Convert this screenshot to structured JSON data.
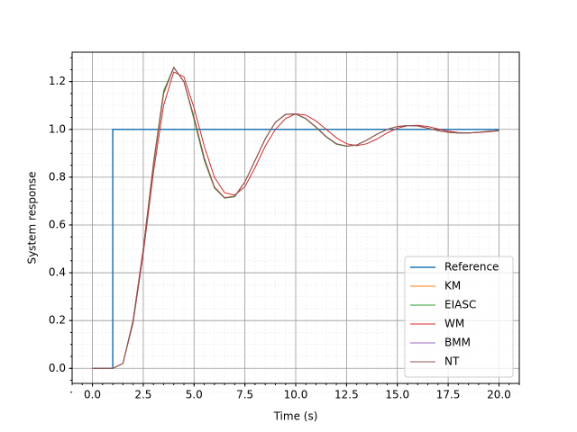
{
  "chart_data": {
    "type": "line",
    "x_label": "Time (s)",
    "y_label": "System response",
    "x": [
      0,
      0.5,
      1,
      1.5,
      2,
      2.5,
      3,
      3.5,
      4,
      4.5,
      5,
      5.5,
      6,
      6.5,
      7,
      7.5,
      8,
      8.5,
      9,
      9.5,
      10,
      10.5,
      11,
      11.5,
      12,
      12.5,
      13,
      13.5,
      14,
      14.5,
      15,
      15.5,
      16,
      16.5,
      17,
      17.5,
      18,
      18.5,
      19,
      19.5,
      20
    ],
    "series": [
      {
        "name": "Reference",
        "color": "#1f77b4",
        "x": [
          0,
          1,
          1,
          20
        ],
        "values": [
          0,
          0,
          1,
          1
        ]
      },
      {
        "name": "KM",
        "color": "#ff7f0e",
        "values": [
          0,
          0,
          0,
          0.02,
          0.2,
          0.5,
          0.85,
          1.15,
          1.26,
          1.2,
          1.05,
          0.88,
          0.76,
          0.715,
          0.72,
          0.78,
          0.87,
          0.96,
          1.03,
          1.063,
          1.065,
          1.045,
          1.01,
          0.97,
          0.94,
          0.93,
          0.935,
          0.955,
          0.98,
          1.0,
          1.012,
          1.016,
          1.014,
          1.005,
          0.995,
          0.988,
          0.985,
          0.985,
          0.988,
          0.992,
          0.995
        ]
      },
      {
        "name": "EIASC",
        "color": "#2ca02c",
        "values": [
          0,
          0,
          0,
          0.02,
          0.2,
          0.5,
          0.86,
          1.16,
          1.26,
          1.2,
          1.04,
          0.87,
          0.755,
          0.712,
          0.718,
          0.78,
          0.87,
          0.96,
          1.03,
          1.062,
          1.064,
          1.044,
          1.008,
          0.968,
          0.938,
          0.929,
          0.934,
          0.955,
          0.98,
          1.0,
          1.012,
          1.016,
          1.014,
          1.005,
          0.995,
          0.988,
          0.985,
          0.985,
          0.988,
          0.992,
          0.995
        ]
      },
      {
        "name": "WM",
        "color": "#d62728",
        "values": [
          0,
          0,
          0,
          0.02,
          0.19,
          0.48,
          0.82,
          1.1,
          1.24,
          1.22,
          1.09,
          0.93,
          0.8,
          0.735,
          0.725,
          0.76,
          0.84,
          0.93,
          1.0,
          1.045,
          1.065,
          1.06,
          1.035,
          1.0,
          0.965,
          0.94,
          0.932,
          0.94,
          0.96,
          0.985,
          1.005,
          1.015,
          1.017,
          1.012,
          1.002,
          0.993,
          0.987,
          0.985,
          0.987,
          0.99,
          0.994
        ]
      },
      {
        "name": "BMM",
        "color": "#9467bd",
        "values": [
          0,
          0,
          0,
          0.02,
          0.2,
          0.5,
          0.85,
          1.15,
          1.258,
          1.2,
          1.05,
          0.88,
          0.758,
          0.714,
          0.72,
          0.78,
          0.87,
          0.96,
          1.03,
          1.062,
          1.065,
          1.045,
          1.01,
          0.97,
          0.94,
          0.93,
          0.935,
          0.955,
          0.98,
          1.0,
          1.012,
          1.016,
          1.014,
          1.005,
          0.995,
          0.988,
          0.985,
          0.985,
          0.988,
          0.992,
          0.995
        ]
      },
      {
        "name": "NT",
        "color": "#8c564b",
        "values": [
          0,
          0,
          0,
          0.02,
          0.2,
          0.5,
          0.85,
          1.15,
          1.259,
          1.2,
          1.05,
          0.88,
          0.757,
          0.713,
          0.72,
          0.78,
          0.87,
          0.96,
          1.03,
          1.063,
          1.065,
          1.045,
          1.01,
          0.97,
          0.94,
          0.93,
          0.935,
          0.955,
          0.98,
          1.0,
          1.012,
          1.016,
          1.014,
          1.005,
          0.995,
          0.988,
          0.985,
          0.985,
          0.988,
          0.992,
          0.995
        ]
      }
    ],
    "xlim": [
      -1,
      21
    ],
    "ylim": [
      -0.063,
      1.323
    ],
    "xticks": [
      {
        "value": 0,
        "label": "0.0"
      },
      2.5,
      {
        "value": 5,
        "label": "5.0"
      },
      7.5,
      {
        "value": 10,
        "label": "10.0"
      },
      12.5,
      {
        "value": 15,
        "label": "15.0"
      },
      17.5,
      {
        "value": 20,
        "label": "20.0"
      }
    ],
    "yticks": [
      {
        "value": 0,
        "label": "0.0"
      },
      0.2,
      0.4,
      0.6,
      0.8,
      {
        "value": 1,
        "label": "1.0"
      },
      1.2
    ],
    "grid": true,
    "minor_grid": true,
    "legend": "lower right"
  }
}
